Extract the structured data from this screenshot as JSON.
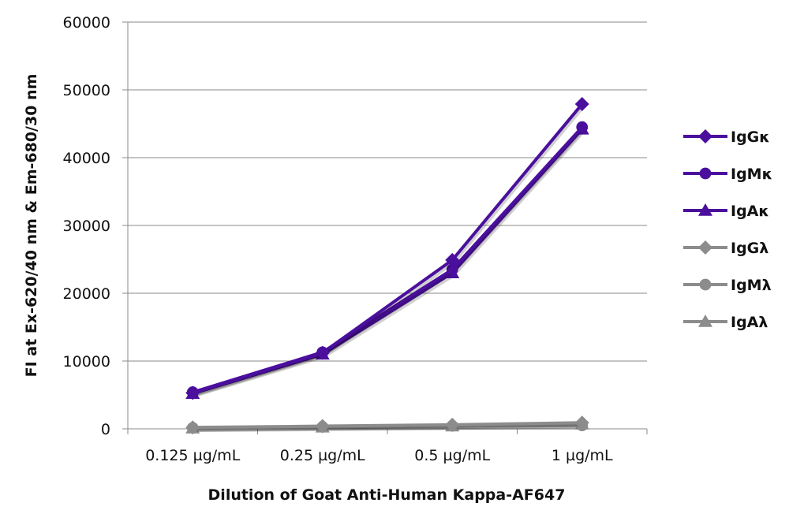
{
  "chart_data": {
    "type": "line",
    "title": "",
    "xlabel": "Dilution of Goat Anti-Human Kappa-AF647",
    "ylabel": "FI at Ex-620/40 nm & Em-680/30 nm",
    "categories": [
      "0.125 µg/mL",
      "0.25 µg/mL",
      "0.5 µg/mL",
      "1 µg/mL"
    ],
    "ylim": [
      0,
      60000
    ],
    "yticks": [
      0,
      10000,
      20000,
      30000,
      40000,
      50000,
      60000
    ],
    "ytick_labels": [
      "0",
      "10000",
      "20000",
      "30000",
      "40000",
      "50000",
      "60000"
    ],
    "grid": true,
    "legend_position": "right",
    "series": [
      {
        "name": "IgGκ",
        "marker": "diamond",
        "color": "#4b0f9e",
        "values": [
          5300,
          11200,
          24900,
          47900
        ]
      },
      {
        "name": "IgMκ",
        "marker": "circle",
        "color": "#4b0f9e",
        "values": [
          5400,
          11300,
          23500,
          44500
        ]
      },
      {
        "name": "IgAκ",
        "marker": "triangle",
        "color": "#4b0f9e",
        "values": [
          5200,
          11000,
          23000,
          44200
        ]
      },
      {
        "name": "IgGλ",
        "marker": "diamond",
        "color": "#8c8c8c",
        "values": [
          200,
          400,
          600,
          900
        ]
      },
      {
        "name": "IgMλ",
        "marker": "circle",
        "color": "#8c8c8c",
        "values": [
          150,
          300,
          450,
          500
        ]
      },
      {
        "name": "IgAλ",
        "marker": "triangle",
        "color": "#8c8c8c",
        "values": [
          100,
          250,
          400,
          700
        ]
      }
    ]
  }
}
